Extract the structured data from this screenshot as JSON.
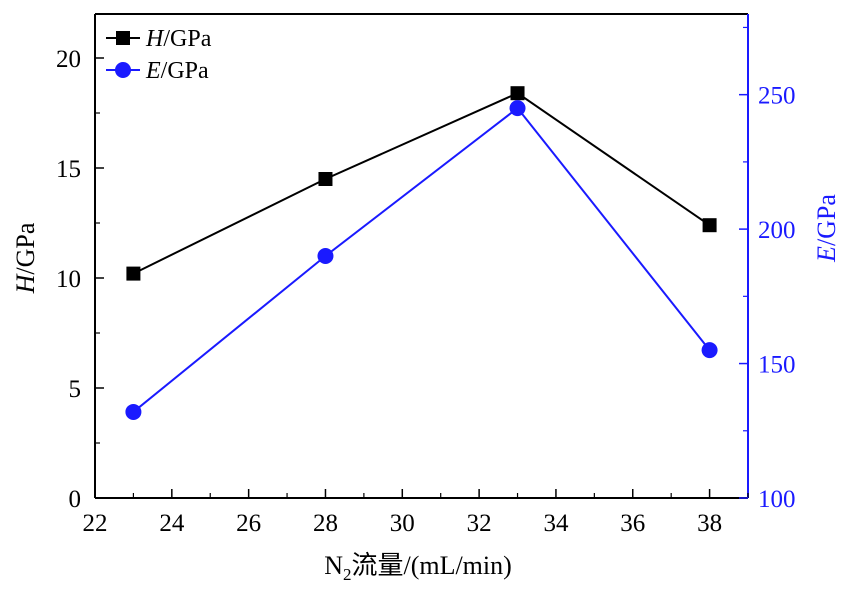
{
  "chart_data": {
    "type": "line",
    "x_label": {
      "base": "N",
      "subscript": "2",
      "rest": "流量/(mL/min)"
    },
    "x_ticks": [
      "22",
      "24",
      "26",
      "28",
      "30",
      "32",
      "34",
      "36",
      "38"
    ],
    "xlim": [
      22,
      39
    ],
    "left_axis": {
      "label_italic": "H",
      "label_rest": "/GPa",
      "ylim": [
        0,
        22
      ],
      "ticks": [
        "0",
        "5",
        "10",
        "15",
        "20"
      ],
      "color": "#000000"
    },
    "right_axis": {
      "label_italic": "E",
      "label_rest": "/GPa",
      "ylim": [
        100,
        280
      ],
      "ticks": [
        "100",
        "150",
        "200",
        "250"
      ],
      "color": "#1a1aff"
    },
    "series": [
      {
        "name_italic": "H",
        "name_rest": "/GPa",
        "axis": "left",
        "marker": "square",
        "color": "#000000",
        "x": [
          23,
          28,
          33,
          38
        ],
        "y": [
          10.2,
          14.5,
          18.4,
          12.4
        ]
      },
      {
        "name_italic": "E",
        "name_rest": "/GPa",
        "axis": "right",
        "marker": "circle",
        "color": "#1a1aff",
        "x": [
          23,
          28,
          33,
          38
        ],
        "y": [
          132,
          190,
          245,
          155
        ]
      }
    ],
    "legend_position": "top-left",
    "grid": false
  }
}
